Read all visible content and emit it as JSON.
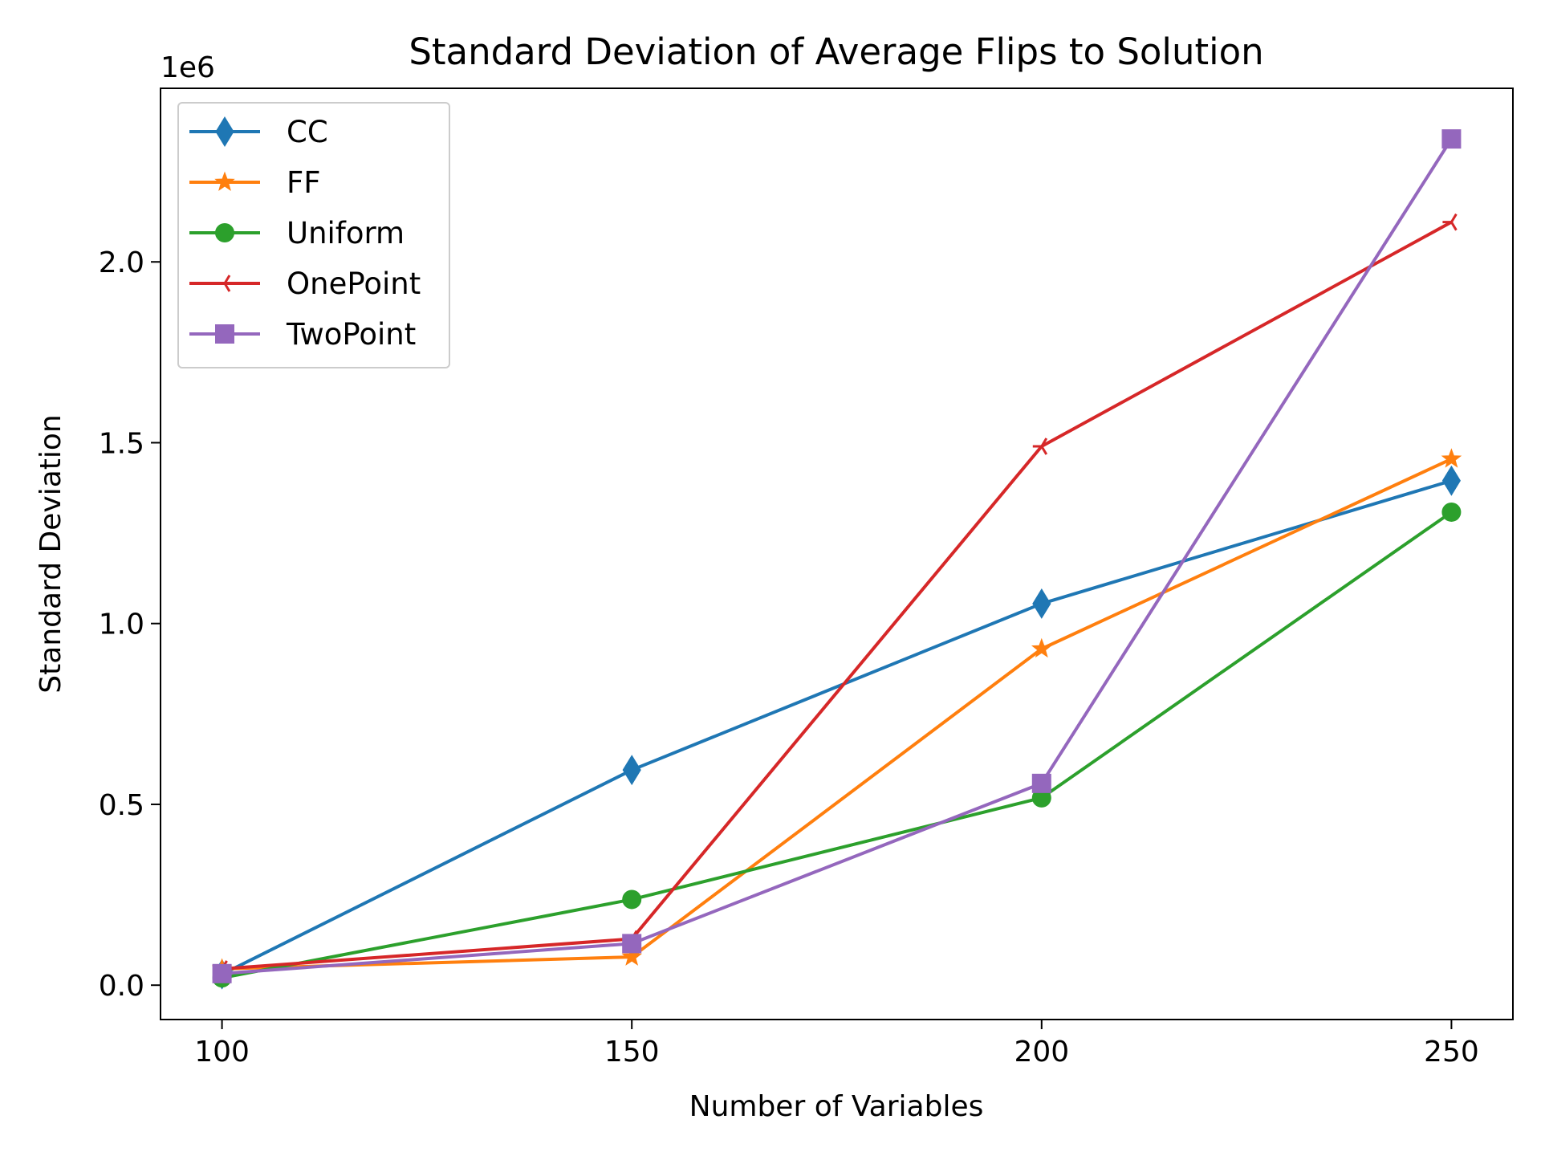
{
  "chart_data": {
    "type": "line",
    "title": "Standard Deviation of Average Flips to Solution",
    "xlabel": "Number of Variables",
    "ylabel": "Standard Deviation",
    "y_offset_label": "1e6",
    "x": [
      100,
      150,
      200,
      250
    ],
    "xlim": [
      92.5,
      257.5
    ],
    "ylim": [
      -0.095,
      2.48
    ],
    "x_ticks": [
      100,
      150,
      200,
      250
    ],
    "y_ticks": [
      0.0,
      0.5,
      1.0,
      1.5,
      2.0
    ],
    "y_tick_labels": [
      "0.0",
      "0.5",
      "1.0",
      "1.5",
      "2.0"
    ],
    "grid": false,
    "legend_position": "upper-left",
    "series": [
      {
        "name": "CC",
        "color": "#1f77b4",
        "marker": "thin_diamond",
        "values": [
          0.03,
          0.595,
          1.055,
          1.395
        ]
      },
      {
        "name": "FF",
        "color": "#ff7f0e",
        "marker": "star",
        "values": [
          0.045,
          0.078,
          0.93,
          1.455
        ]
      },
      {
        "name": "Uniform",
        "color": "#2ca02c",
        "marker": "circle",
        "values": [
          0.02,
          0.237,
          0.518,
          1.308
        ]
      },
      {
        "name": "OnePoint",
        "color": "#d62728",
        "marker": "tri_left",
        "values": [
          0.045,
          0.128,
          1.49,
          2.11
        ]
      },
      {
        "name": "TwoPoint",
        "color": "#9467bd",
        "marker": "square",
        "values": [
          0.032,
          0.115,
          0.558,
          2.34
        ]
      }
    ]
  }
}
